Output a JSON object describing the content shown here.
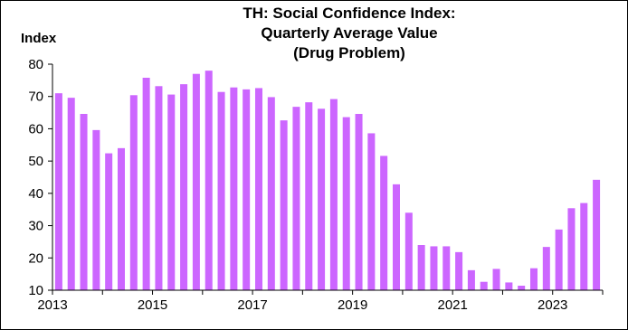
{
  "chart_data": {
    "type": "bar",
    "title_lines": [
      "TH: Social Confidence Index:",
      "Quarterly Average Value",
      "(Drug Problem)"
    ],
    "ylabel": "Index",
    "xlabel": "",
    "ylim": [
      10,
      80
    ],
    "yticks": [
      "10",
      "20",
      "30",
      "40",
      "50",
      "60",
      "70",
      "80"
    ],
    "xticks": [
      "2013",
      "2015",
      "2017",
      "2019",
      "2021",
      "2023"
    ],
    "bar_color": "#cc66ff",
    "grid": false,
    "start": "2013-Q1",
    "categories": [
      "2013-Q1",
      "2013-Q2",
      "2013-Q3",
      "2013-Q4",
      "2014-Q1",
      "2014-Q2",
      "2014-Q3",
      "2014-Q4",
      "2015-Q1",
      "2015-Q2",
      "2015-Q3",
      "2015-Q4",
      "2016-Q1",
      "2016-Q2",
      "2016-Q3",
      "2016-Q4",
      "2017-Q1",
      "2017-Q2",
      "2017-Q3",
      "2017-Q4",
      "2018-Q1",
      "2018-Q2",
      "2018-Q3",
      "2018-Q4",
      "2019-Q1",
      "2019-Q2",
      "2019-Q3",
      "2019-Q4",
      "2020-Q1",
      "2020-Q2",
      "2020-Q3",
      "2020-Q4",
      "2021-Q1",
      "2021-Q2",
      "2021-Q3",
      "2021-Q4",
      "2022-Q1",
      "2022-Q2",
      "2022-Q3",
      "2022-Q4",
      "2023-Q1",
      "2023-Q2",
      "2023-Q3",
      "2023-Q4"
    ],
    "values": [
      71,
      69.6,
      64.6,
      59.6,
      52.4,
      54.0,
      70.4,
      75.8,
      73.2,
      70.6,
      73.8,
      77.0,
      78.0,
      71.4,
      72.8,
      72.2,
      72.6,
      69.8,
      62.6,
      66.8,
      68.2,
      66.2,
      69.2,
      63.6,
      64.6,
      58.6,
      51.6,
      42.8,
      34.0,
      24.0,
      23.6,
      23.6,
      21.8,
      16.2,
      12.6,
      16.6,
      12.4,
      11.4,
      16.8,
      23.4,
      28.8,
      35.4,
      37.0,
      44.2
    ]
  }
}
